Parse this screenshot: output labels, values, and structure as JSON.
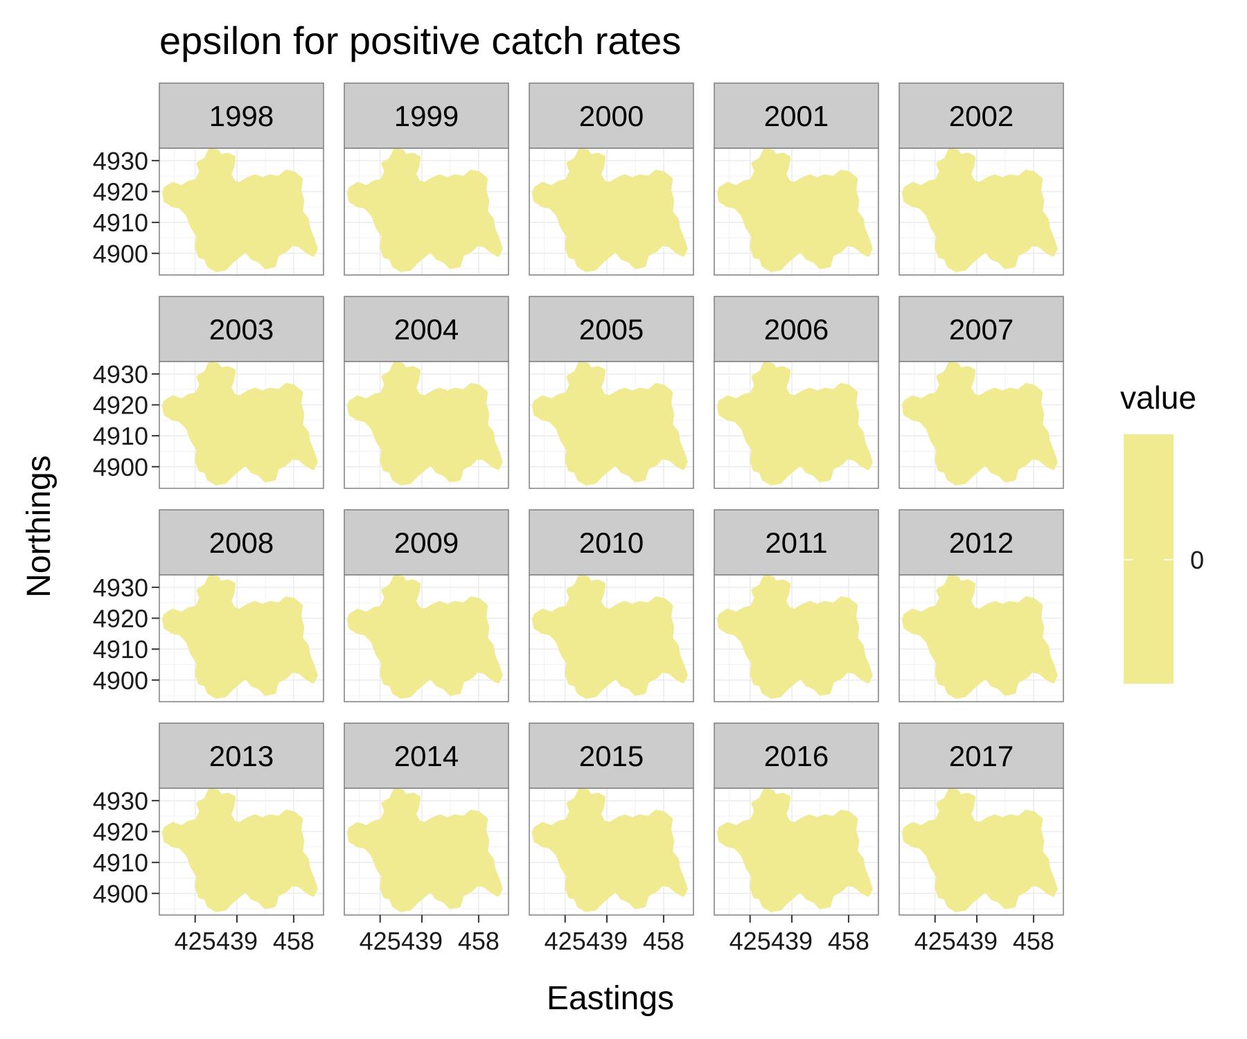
{
  "chart_data": {
    "type": "heatmap",
    "title": "epsilon for positive catch rates",
    "xlabel": "Eastings",
    "ylabel": "Northings",
    "facets": [
      "1998",
      "1999",
      "2000",
      "2001",
      "2002",
      "2003",
      "2004",
      "2005",
      "2006",
      "2007",
      "2008",
      "2009",
      "2010",
      "2011",
      "2012",
      "2013",
      "2014",
      "2015",
      "2016",
      "2017"
    ],
    "x_ticks": [
      425,
      439,
      458
    ],
    "x_tick_labels": [
      "425",
      "439",
      "458"
    ],
    "y_ticks": [
      4900,
      4910,
      4920,
      4930
    ],
    "y_tick_labels": [
      "4900",
      "4910",
      "4920",
      "4930"
    ],
    "xlim": [
      413,
      468
    ],
    "ylim": [
      4893,
      4934
    ],
    "grid": true,
    "legend": {
      "title": "value",
      "placement": "right",
      "breaks": [
        0
      ],
      "break_labels": [
        "0"
      ],
      "color": "#F0EA91"
    },
    "region_outline": [
      [
        415.0,
        4921.0
      ],
      [
        417.5,
        4922.5
      ],
      [
        420.5,
        4921.5
      ],
      [
        423.0,
        4923.0
      ],
      [
        425.5,
        4923.5
      ],
      [
        427.0,
        4926.5
      ],
      [
        426.0,
        4929.0
      ],
      [
        428.5,
        4930.5
      ],
      [
        430.0,
        4933.5
      ],
      [
        432.5,
        4933.0
      ],
      [
        433.5,
        4931.5
      ],
      [
        436.0,
        4932.0
      ],
      [
        438.0,
        4931.0
      ],
      [
        437.5,
        4928.0
      ],
      [
        436.5,
        4925.5
      ],
      [
        438.0,
        4923.0
      ],
      [
        440.0,
        4922.5
      ],
      [
        442.5,
        4924.0
      ],
      [
        445.0,
        4925.0
      ],
      [
        447.5,
        4924.0
      ],
      [
        450.0,
        4925.0
      ],
      [
        453.0,
        4924.5
      ],
      [
        455.5,
        4926.5
      ],
      [
        458.0,
        4926.0
      ],
      [
        460.5,
        4924.0
      ],
      [
        460.0,
        4920.5
      ],
      [
        461.0,
        4917.0
      ],
      [
        460.5,
        4913.5
      ],
      [
        462.5,
        4911.0
      ],
      [
        463.0,
        4908.0
      ],
      [
        464.5,
        4904.5
      ],
      [
        465.5,
        4901.5
      ],
      [
        464.5,
        4899.5
      ],
      [
        462.5,
        4900.5
      ],
      [
        460.0,
        4902.5
      ],
      [
        457.5,
        4903.0
      ],
      [
        455.5,
        4901.0
      ],
      [
        452.5,
        4899.5
      ],
      [
        451.5,
        4896.0
      ],
      [
        448.5,
        4895.5
      ],
      [
        446.5,
        4897.5
      ],
      [
        444.0,
        4898.5
      ],
      [
        442.0,
        4901.0
      ],
      [
        440.0,
        4899.5
      ],
      [
        437.0,
        4897.0
      ],
      [
        435.0,
        4895.0
      ],
      [
        432.0,
        4894.5
      ],
      [
        429.5,
        4896.0
      ],
      [
        428.5,
        4898.5
      ],
      [
        426.5,
        4899.0
      ],
      [
        425.5,
        4902.0
      ],
      [
        426.0,
        4905.5
      ],
      [
        424.0,
        4908.5
      ],
      [
        422.5,
        4912.5
      ],
      [
        420.0,
        4915.0
      ],
      [
        417.5,
        4915.5
      ],
      [
        415.0,
        4917.0
      ],
      [
        414.5,
        4919.5
      ]
    ]
  }
}
